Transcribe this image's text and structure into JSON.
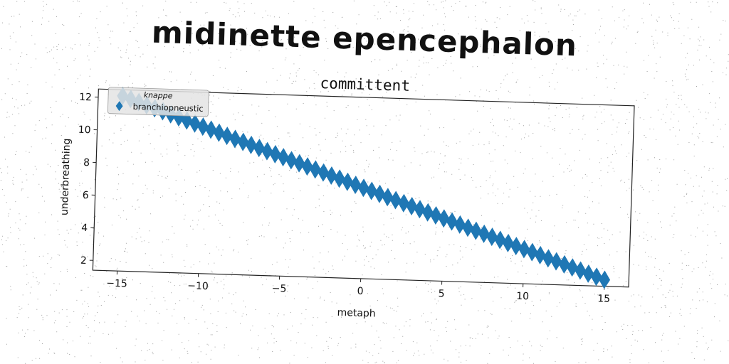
{
  "figure": {
    "suptitle": "midinette epencephalon"
  },
  "chart_data": {
    "type": "scatter",
    "title": "committent",
    "xlabel": "metaph",
    "ylabel": "underbreathing",
    "xlim": [
      -16.5,
      16.5
    ],
    "ylim": [
      1.4,
      12.5
    ],
    "xticks": [
      -15,
      -10,
      -5,
      0,
      5,
      10,
      15
    ],
    "yticks": [
      2,
      4,
      6,
      8,
      10,
      12
    ],
    "grid": false,
    "legend": {
      "title": "knappe",
      "placement": "upper left",
      "entries": [
        "branchiopneustic"
      ]
    },
    "series": [
      {
        "name": "branchiopneustic",
        "marker": "diamond",
        "color": "#1f77b4",
        "x": [
          -15.0,
          -14.5,
          -14.0,
          -13.5,
          -13.0,
          -12.5,
          -12.0,
          -11.5,
          -11.0,
          -10.5,
          -10.0,
          -9.5,
          -9.0,
          -8.5,
          -8.0,
          -7.5,
          -7.0,
          -6.5,
          -6.0,
          -5.5,
          -5.0,
          -4.5,
          -4.0,
          -3.5,
          -3.0,
          -2.5,
          -2.0,
          -1.5,
          -1.0,
          -0.5,
          0.0,
          0.5,
          1.0,
          1.5,
          2.0,
          2.5,
          3.0,
          3.5,
          4.0,
          4.5,
          5.0,
          5.5,
          6.0,
          6.5,
          7.0,
          7.5,
          8.0,
          8.5,
          9.0,
          9.5,
          10.0,
          10.5,
          11.0,
          11.5,
          12.0,
          12.5,
          13.0,
          13.5,
          14.0,
          14.5,
          15.0
        ],
        "y": [
          12.12,
          11.95,
          11.78,
          11.6,
          11.43,
          11.26,
          11.09,
          10.92,
          10.74,
          10.57,
          10.4,
          10.23,
          10.06,
          9.88,
          9.71,
          9.54,
          9.37,
          9.2,
          9.02,
          8.85,
          8.68,
          8.51,
          8.34,
          8.16,
          7.99,
          7.82,
          7.65,
          7.48,
          7.3,
          7.13,
          6.96,
          6.79,
          6.62,
          6.44,
          6.27,
          6.1,
          5.93,
          5.76,
          5.58,
          5.41,
          5.24,
          5.07,
          4.9,
          4.72,
          4.55,
          4.38,
          4.21,
          4.04,
          3.86,
          3.69,
          3.52,
          3.35,
          3.18,
          3.0,
          2.83,
          2.66,
          2.49,
          2.32,
          2.14,
          1.97,
          1.8
        ]
      }
    ]
  }
}
